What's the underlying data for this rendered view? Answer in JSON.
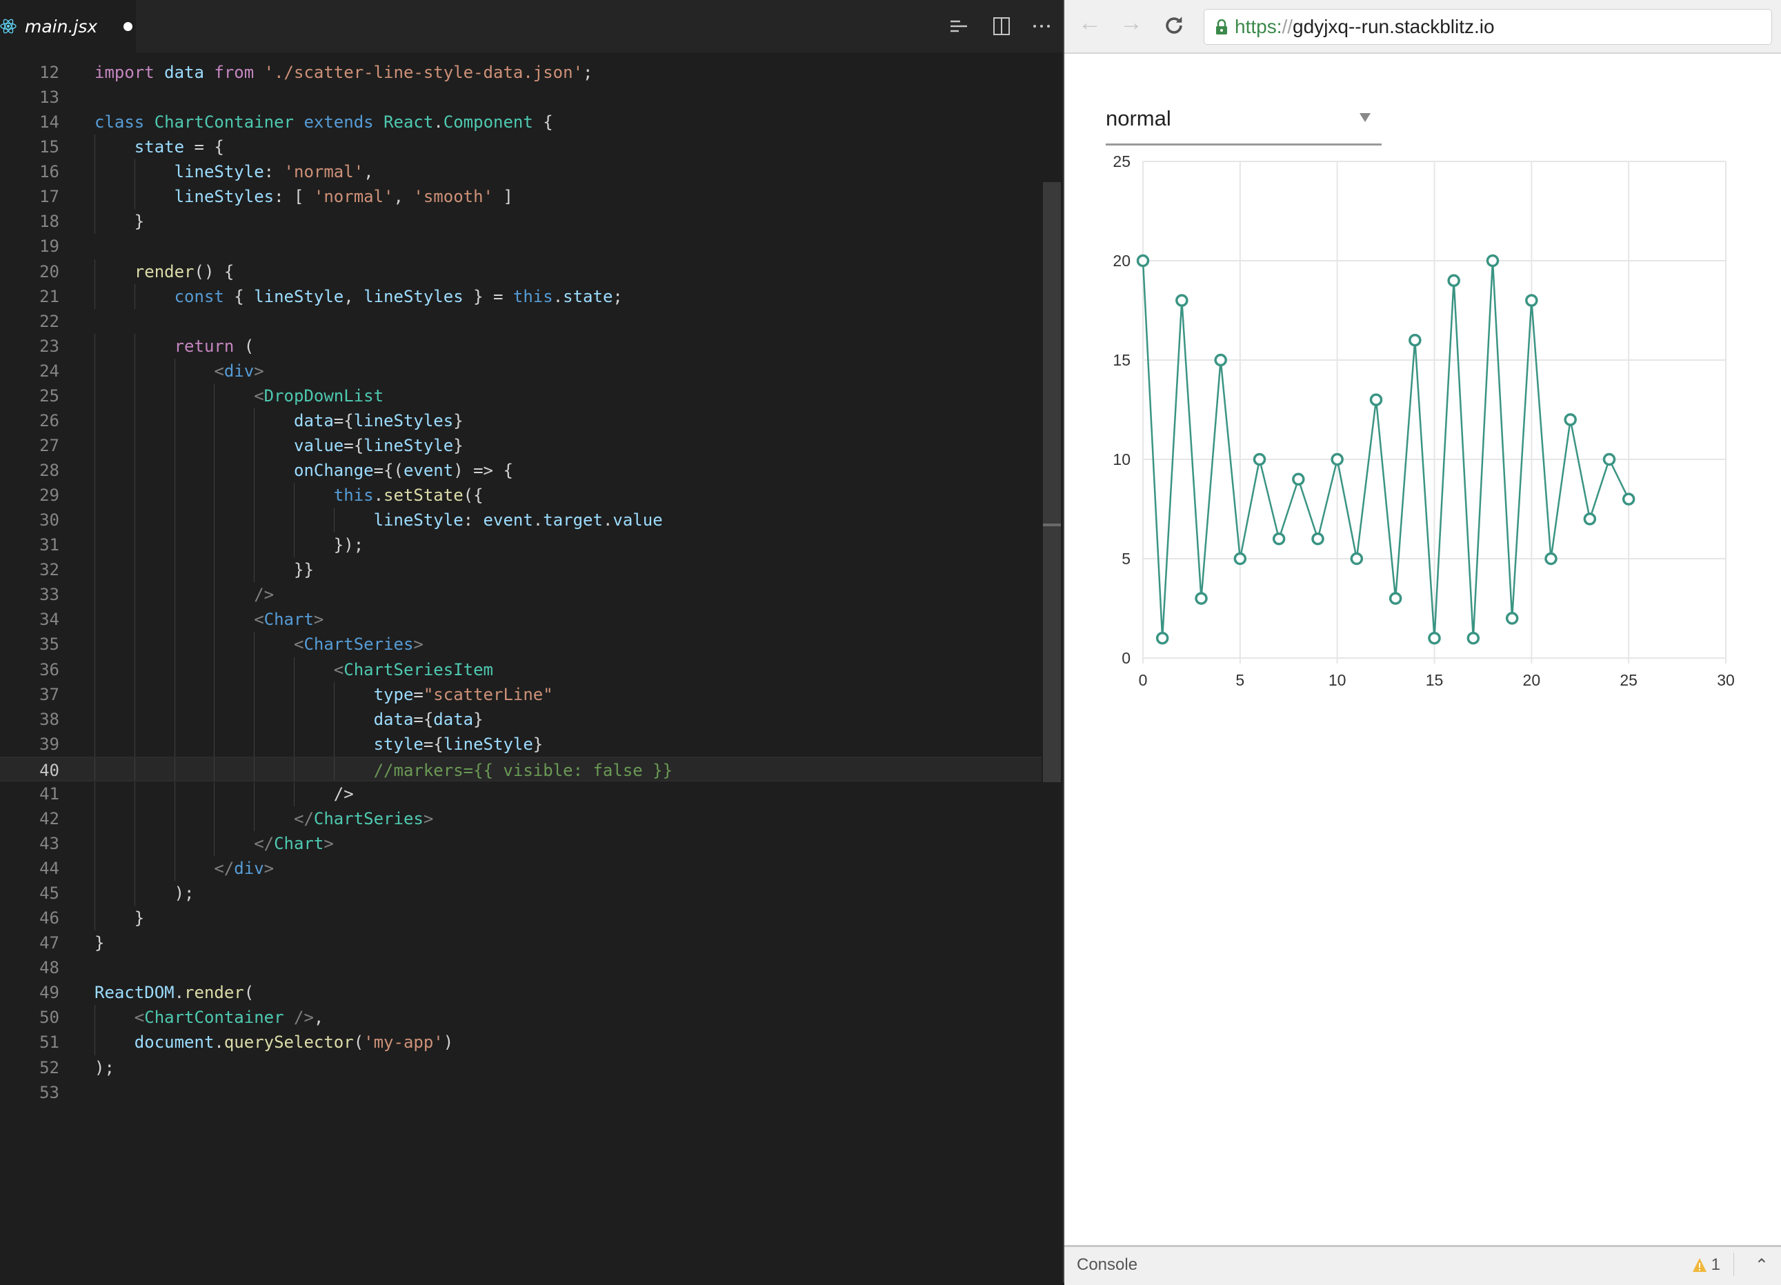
{
  "editor": {
    "tab": {
      "filename": "main.jsx",
      "icon": "react-icon",
      "dirty": true
    },
    "toolbar_icons": [
      "toggle-word-wrap-icon",
      "split-editor-icon",
      "more-actions-icon"
    ],
    "current_line": 40,
    "lines": [
      {
        "n": 12,
        "indent": 0,
        "tokens": [
          [
            "import",
            "kw"
          ],
          [
            " ",
            "p"
          ],
          [
            "data",
            "v"
          ],
          [
            " ",
            "p"
          ],
          [
            "from",
            "kw"
          ],
          [
            " ",
            "p"
          ],
          [
            "'./scatter-line-style-data.json'",
            "s"
          ],
          [
            ";",
            "p"
          ]
        ]
      },
      {
        "n": 13,
        "indent": 0,
        "tokens": []
      },
      {
        "n": 14,
        "indent": 0,
        "tokens": [
          [
            "class",
            "st"
          ],
          [
            " ",
            "p"
          ],
          [
            "ChartContainer",
            "ty"
          ],
          [
            " ",
            "p"
          ],
          [
            "extends",
            "st"
          ],
          [
            " ",
            "p"
          ],
          [
            "React",
            "ty"
          ],
          [
            ".",
            "p"
          ],
          [
            "Component",
            "ty"
          ],
          [
            " {",
            "p"
          ]
        ]
      },
      {
        "n": 15,
        "indent": 1,
        "tokens": [
          [
            "state",
            "v"
          ],
          [
            " = {",
            "p"
          ]
        ]
      },
      {
        "n": 16,
        "indent": 2,
        "tokens": [
          [
            "lineStyle",
            "v"
          ],
          [
            ": ",
            "p"
          ],
          [
            "'normal'",
            "s"
          ],
          [
            ",",
            "p"
          ]
        ]
      },
      {
        "n": 17,
        "indent": 2,
        "tokens": [
          [
            "lineStyles",
            "v"
          ],
          [
            ": [ ",
            "p"
          ],
          [
            "'normal'",
            "s"
          ],
          [
            ", ",
            "p"
          ],
          [
            "'smooth'",
            "s"
          ],
          [
            " ]",
            "p"
          ]
        ]
      },
      {
        "n": 18,
        "indent": 1,
        "tokens": [
          [
            "}",
            "p"
          ]
        ]
      },
      {
        "n": 19,
        "indent": 0,
        "tokens": []
      },
      {
        "n": 20,
        "indent": 1,
        "tokens": [
          [
            "render",
            "f"
          ],
          [
            "() {",
            "p"
          ]
        ]
      },
      {
        "n": 21,
        "indent": 2,
        "tokens": [
          [
            "const",
            "st"
          ],
          [
            " { ",
            "p"
          ],
          [
            "lineStyle",
            "v"
          ],
          [
            ", ",
            "p"
          ],
          [
            "lineStyles",
            "v"
          ],
          [
            " } = ",
            "p"
          ],
          [
            "this",
            "st"
          ],
          [
            ".",
            "p"
          ],
          [
            "state",
            "v"
          ],
          [
            ";",
            "p"
          ]
        ]
      },
      {
        "n": 22,
        "indent": 0,
        "tokens": []
      },
      {
        "n": 23,
        "indent": 2,
        "tokens": [
          [
            "return",
            "kw"
          ],
          [
            " (",
            "p"
          ]
        ]
      },
      {
        "n": 24,
        "indent": 3,
        "tokens": [
          [
            "<",
            "tg"
          ],
          [
            "div",
            "st"
          ],
          [
            ">",
            "tg"
          ]
        ]
      },
      {
        "n": 25,
        "indent": 4,
        "tokens": [
          [
            "<",
            "tg"
          ],
          [
            "DropDownList",
            "ty"
          ]
        ]
      },
      {
        "n": 26,
        "indent": 5,
        "tokens": [
          [
            "data",
            "v"
          ],
          [
            "={",
            "p"
          ],
          [
            "lineStyles",
            "v"
          ],
          [
            "}",
            "p"
          ]
        ]
      },
      {
        "n": 27,
        "indent": 5,
        "tokens": [
          [
            "value",
            "v"
          ],
          [
            "={",
            "p"
          ],
          [
            "lineStyle",
            "v"
          ],
          [
            "}",
            "p"
          ]
        ]
      },
      {
        "n": 28,
        "indent": 5,
        "tokens": [
          [
            "onChange",
            "v"
          ],
          [
            "={(",
            "p"
          ],
          [
            "event",
            "v"
          ],
          [
            ") => {",
            "p"
          ]
        ]
      },
      {
        "n": 29,
        "indent": 6,
        "tokens": [
          [
            "this",
            "st"
          ],
          [
            ".",
            "p"
          ],
          [
            "setState",
            "f"
          ],
          [
            "({",
            "p"
          ]
        ]
      },
      {
        "n": 30,
        "indent": 7,
        "tokens": [
          [
            "lineStyle",
            "v"
          ],
          [
            ": ",
            "p"
          ],
          [
            "event",
            "v"
          ],
          [
            ".",
            "p"
          ],
          [
            "target",
            "v"
          ],
          [
            ".",
            "p"
          ],
          [
            "value",
            "v"
          ]
        ]
      },
      {
        "n": 31,
        "indent": 6,
        "tokens": [
          [
            "});",
            "p"
          ]
        ]
      },
      {
        "n": 32,
        "indent": 5,
        "tokens": [
          [
            "}}",
            "p"
          ]
        ]
      },
      {
        "n": 33,
        "indent": 4,
        "tokens": [
          [
            "/>",
            "tg"
          ]
        ]
      },
      {
        "n": 34,
        "indent": 4,
        "tokens": [
          [
            "<",
            "tg"
          ],
          [
            "Chart",
            "st"
          ],
          [
            ">",
            "tg"
          ]
        ]
      },
      {
        "n": 35,
        "indent": 5,
        "tokens": [
          [
            "<",
            "tg"
          ],
          [
            "ChartSeries",
            "st"
          ],
          [
            ">",
            "tg"
          ]
        ]
      },
      {
        "n": 36,
        "indent": 6,
        "tokens": [
          [
            "<",
            "tg"
          ],
          [
            "ChartSeriesItem",
            "ty"
          ]
        ]
      },
      {
        "n": 37,
        "indent": 7,
        "tokens": [
          [
            "type",
            "v"
          ],
          [
            "=",
            "p"
          ],
          [
            "\"scatterLine\"",
            "s"
          ]
        ]
      },
      {
        "n": 38,
        "indent": 7,
        "tokens": [
          [
            "data",
            "v"
          ],
          [
            "={",
            "p"
          ],
          [
            "data",
            "v"
          ],
          [
            "}",
            "p"
          ]
        ]
      },
      {
        "n": 39,
        "indent": 7,
        "tokens": [
          [
            "style",
            "v"
          ],
          [
            "={",
            "p"
          ],
          [
            "lineStyle",
            "v"
          ],
          [
            "}",
            "p"
          ]
        ]
      },
      {
        "n": 40,
        "indent": 7,
        "tokens": [
          [
            "//markers={{ visible: false }}",
            "c"
          ]
        ]
      },
      {
        "n": 41,
        "indent": 6,
        "tokens": [
          [
            "/>",
            "p"
          ]
        ]
      },
      {
        "n": 42,
        "indent": 5,
        "tokens": [
          [
            "</",
            "tg"
          ],
          [
            "ChartSeries",
            "ty"
          ],
          [
            ">",
            "tg"
          ]
        ]
      },
      {
        "n": 43,
        "indent": 4,
        "tokens": [
          [
            "</",
            "tg"
          ],
          [
            "Chart",
            "ty"
          ],
          [
            ">",
            "tg"
          ]
        ]
      },
      {
        "n": 44,
        "indent": 3,
        "tokens": [
          [
            "</",
            "tg"
          ],
          [
            "div",
            "st"
          ],
          [
            ">",
            "tg"
          ]
        ]
      },
      {
        "n": 45,
        "indent": 2,
        "tokens": [
          [
            ");",
            "p"
          ]
        ]
      },
      {
        "n": 46,
        "indent": 1,
        "tokens": [
          [
            "}",
            "p"
          ]
        ]
      },
      {
        "n": 47,
        "indent": 0,
        "tokens": [
          [
            "}",
            "p"
          ]
        ]
      },
      {
        "n": 48,
        "indent": 0,
        "tokens": []
      },
      {
        "n": 49,
        "indent": 0,
        "tokens": [
          [
            "ReactDOM",
            "v"
          ],
          [
            ".",
            "p"
          ],
          [
            "render",
            "f"
          ],
          [
            "(",
            "p"
          ]
        ]
      },
      {
        "n": 50,
        "indent": 1,
        "tokens": [
          [
            "<",
            "tg"
          ],
          [
            "ChartContainer",
            "ty"
          ],
          [
            " />",
            "tg"
          ],
          [
            ",",
            "p"
          ]
        ]
      },
      {
        "n": 51,
        "indent": 1,
        "tokens": [
          [
            "document",
            "v"
          ],
          [
            ".",
            "p"
          ],
          [
            "querySelector",
            "f"
          ],
          [
            "(",
            "p"
          ],
          [
            "'my-app'",
            "s"
          ],
          [
            ")",
            "p"
          ]
        ]
      },
      {
        "n": 52,
        "indent": 0,
        "tokens": [
          [
            ");",
            "p"
          ]
        ]
      },
      {
        "n": 53,
        "indent": 0,
        "tokens": []
      }
    ]
  },
  "browser": {
    "nav_icons": [
      "back-icon",
      "forward-icon",
      "reload-icon"
    ],
    "url": {
      "scheme": "https:",
      "separator": "//",
      "host": "gdyjxq--run.stackblitz.io"
    },
    "dropdown": {
      "value": "normal"
    },
    "console": {
      "label": "Console",
      "warning_count": "1"
    }
  },
  "chart_data": {
    "type": "scatterLine",
    "x": [
      0,
      1,
      2,
      3,
      4,
      5,
      6,
      7,
      8,
      9,
      10,
      11,
      12,
      13,
      14,
      15,
      16,
      17,
      18,
      19,
      20,
      21,
      22,
      23,
      24,
      25
    ],
    "y": [
      20,
      1,
      18,
      3,
      15,
      5,
      10,
      6,
      9,
      6,
      10,
      5,
      13,
      3,
      16,
      1,
      19,
      1,
      20,
      2,
      18,
      5,
      12,
      7,
      10,
      8
    ],
    "xlim": [
      0,
      30
    ],
    "ylim": [
      0,
      25
    ],
    "xticks": [
      "0",
      "5",
      "10",
      "15",
      "20",
      "25",
      "30"
    ],
    "yticks": [
      "0",
      "5",
      "10",
      "15",
      "20",
      "25"
    ],
    "grid": true,
    "markers": "hollow circles",
    "color": "#3a9483"
  }
}
